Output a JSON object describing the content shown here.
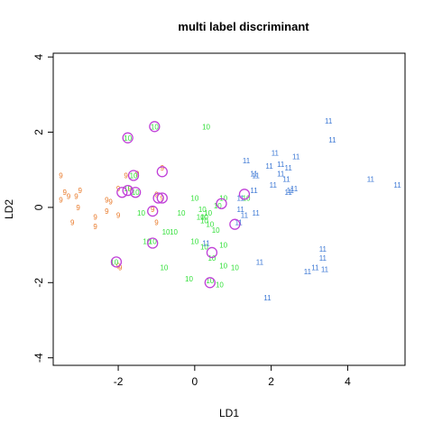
{
  "chart_data": {
    "type": "scatter",
    "title": "multi label discriminant",
    "xlabel": "LD1",
    "ylabel": "LD2",
    "xlim": [
      -3.7,
      5.5
    ],
    "ylim": [
      -4.2,
      4.1
    ],
    "xticks": [
      -2,
      0,
      2,
      4
    ],
    "yticks": [
      -4,
      -2,
      0,
      2,
      4
    ],
    "grid": false,
    "series": [
      {
        "name": "9",
        "color": "#e97a2a",
        "points": [
          [
            -3.5,
            0.85
          ],
          [
            -3.4,
            0.4
          ],
          [
            -3.5,
            0.2
          ],
          [
            -3.3,
            0.3
          ],
          [
            -3.1,
            0.3
          ],
          [
            -3.0,
            0.45
          ],
          [
            -3.2,
            -0.4
          ],
          [
            -3.05,
            0.0
          ],
          [
            -2.6,
            -0.25
          ],
          [
            -2.6,
            -0.5
          ],
          [
            -2.3,
            0.2
          ],
          [
            -2.3,
            -0.1
          ],
          [
            -2.0,
            -0.2
          ],
          [
            -2.0,
            0.5
          ],
          [
            -1.8,
            0.85
          ],
          [
            -1.7,
            0.5
          ],
          [
            -1.5,
            0.9
          ],
          [
            -0.85,
            1.05
          ],
          [
            -1.0,
            0.35
          ],
          [
            -1.1,
            -0.05
          ],
          [
            -0.85,
            0.25
          ],
          [
            -1.0,
            -0.4
          ],
          [
            -1.95,
            -1.6
          ],
          [
            -2.0,
            -1.55
          ],
          [
            -2.2,
            0.15
          ]
        ]
      },
      {
        "name": "10",
        "color": "#33e03a",
        "points": [
          [
            -1.05,
            2.15
          ],
          [
            -1.75,
            1.85
          ],
          [
            0.3,
            2.15
          ],
          [
            -1.6,
            0.85
          ],
          [
            -1.75,
            0.5
          ],
          [
            -1.55,
            0.4
          ],
          [
            -1.4,
            -0.15
          ],
          [
            -0.75,
            -0.65
          ],
          [
            -0.55,
            -0.65
          ],
          [
            -1.1,
            -0.9
          ],
          [
            -1.25,
            -0.9
          ],
          [
            -0.8,
            -1.6
          ],
          [
            -0.35,
            -0.15
          ],
          [
            0.0,
            0.25
          ],
          [
            0.2,
            -0.05
          ],
          [
            0.25,
            -0.25
          ],
          [
            0.25,
            -0.35
          ],
          [
            0.0,
            -0.9
          ],
          [
            0.25,
            -1.05
          ],
          [
            0.55,
            -0.6
          ],
          [
            0.75,
            -1.0
          ],
          [
            0.6,
            0.05
          ],
          [
            0.75,
            0.25
          ],
          [
            1.35,
            0.25
          ],
          [
            0.75,
            -1.55
          ],
          [
            1.05,
            -1.6
          ],
          [
            0.65,
            -2.05
          ],
          [
            -0.15,
            -1.9
          ],
          [
            0.4,
            -1.95
          ],
          [
            0.45,
            -1.35
          ],
          [
            0.4,
            -0.45
          ],
          [
            -2.1,
            -1.45
          ],
          [
            0.15,
            -0.25
          ],
          [
            0.35,
            -0.15
          ]
        ]
      },
      {
        "name": "11",
        "color": "#3b77d4",
        "points": [
          [
            3.5,
            2.3
          ],
          [
            3.6,
            1.8
          ],
          [
            2.1,
            1.45
          ],
          [
            1.35,
            1.25
          ],
          [
            2.65,
            1.35
          ],
          [
            1.55,
            0.9
          ],
          [
            1.6,
            0.85
          ],
          [
            1.95,
            1.1
          ],
          [
            2.25,
            1.15
          ],
          [
            2.45,
            1.05
          ],
          [
            2.25,
            0.9
          ],
          [
            2.05,
            0.6
          ],
          [
            2.4,
            0.75
          ],
          [
            2.5,
            0.45
          ],
          [
            2.6,
            0.5
          ],
          [
            2.45,
            0.4
          ],
          [
            4.6,
            0.75
          ],
          [
            5.3,
            0.6
          ],
          [
            1.55,
            0.45
          ],
          [
            1.2,
            0.25
          ],
          [
            1.6,
            -0.15
          ],
          [
            1.3,
            -0.2
          ],
          [
            1.2,
            -0.05
          ],
          [
            1.15,
            -0.4
          ],
          [
            1.7,
            -1.45
          ],
          [
            0.3,
            -0.95
          ],
          [
            3.35,
            -1.1
          ],
          [
            3.35,
            -1.35
          ],
          [
            3.15,
            -1.6
          ],
          [
            3.4,
            -1.65
          ],
          [
            2.95,
            -1.7
          ],
          [
            1.9,
            -2.4
          ]
        ]
      }
    ],
    "highlighted": [
      [
        -1.05,
        2.15
      ],
      [
        -1.75,
        1.85
      ],
      [
        -1.6,
        0.85
      ],
      [
        -0.85,
        0.95
      ],
      [
        -1.75,
        0.45
      ],
      [
        -1.55,
        0.4
      ],
      [
        -1.9,
        0.4
      ],
      [
        -0.95,
        0.25
      ],
      [
        -0.85,
        0.25
      ],
      [
        -1.1,
        -0.1
      ],
      [
        1.3,
        0.35
      ],
      [
        0.7,
        0.1
      ],
      [
        1.05,
        -0.45
      ],
      [
        -1.1,
        -0.95
      ],
      [
        0.45,
        -1.2
      ],
      [
        -2.05,
        -1.45
      ],
      [
        0.4,
        -2.0
      ]
    ],
    "highlight_color": "#c040d8"
  }
}
